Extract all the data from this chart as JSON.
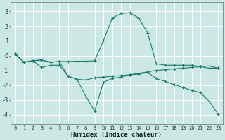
{
  "xlabel": "Humidex (Indice chaleur)",
  "background_color": "#cce8e4",
  "grid_color": "#ffffff",
  "line_color": "#1a7a6e",
  "xlim": [
    -0.5,
    23.5
  ],
  "ylim": [
    -4.6,
    3.6
  ],
  "yticks": [
    -4,
    -3,
    -2,
    -1,
    0,
    1,
    2,
    3
  ],
  "xticks": [
    0,
    1,
    2,
    3,
    4,
    5,
    6,
    7,
    8,
    9,
    10,
    11,
    12,
    13,
    14,
    15,
    16,
    17,
    18,
    19,
    20,
    21,
    22,
    23
  ],
  "line1_x": [
    0,
    1,
    2,
    3,
    4,
    5,
    6,
    7,
    8,
    9,
    10,
    11,
    12,
    13,
    14,
    15,
    16,
    17,
    18,
    19,
    20,
    21,
    22,
    23
  ],
  "line1_y": [
    0.1,
    -0.45,
    -0.35,
    -0.3,
    -0.45,
    -0.4,
    -0.4,
    -0.38,
    -0.38,
    -0.35,
    1.0,
    2.55,
    2.85,
    2.9,
    2.55,
    1.55,
    -0.55,
    -0.65,
    -0.65,
    -0.65,
    -0.65,
    -0.75,
    -0.85,
    -0.85
  ],
  "line2_x": [
    0,
    1,
    2,
    3,
    4,
    5,
    6,
    7,
    8,
    9,
    10,
    11,
    12,
    13,
    14,
    15,
    16,
    17,
    18,
    19,
    20,
    21,
    22,
    23
  ],
  "line2_y": [
    0.1,
    -0.45,
    -0.35,
    -0.8,
    -0.65,
    -0.65,
    -1.4,
    -1.6,
    -2.75,
    -3.75,
    -1.8,
    -1.55,
    -1.45,
    -1.3,
    -1.2,
    -1.1,
    -1.0,
    -0.95,
    -0.9,
    -0.85,
    -0.8,
    -0.75,
    -0.7,
    -0.85
  ],
  "line3_x": [
    0,
    1,
    2,
    3,
    4,
    5,
    6,
    7,
    8,
    9,
    10,
    11,
    12,
    13,
    14,
    15,
    16,
    17,
    18,
    19,
    20,
    21,
    22,
    23
  ],
  "line3_y": [
    0.1,
    -0.45,
    -0.35,
    -0.3,
    -0.45,
    -0.4,
    -1.4,
    -1.6,
    -1.65,
    -1.5,
    -1.45,
    -1.4,
    -1.35,
    -1.3,
    -1.25,
    -1.15,
    -1.55,
    -1.75,
    -1.95,
    -2.15,
    -2.35,
    -2.5,
    -3.1,
    -3.95
  ]
}
